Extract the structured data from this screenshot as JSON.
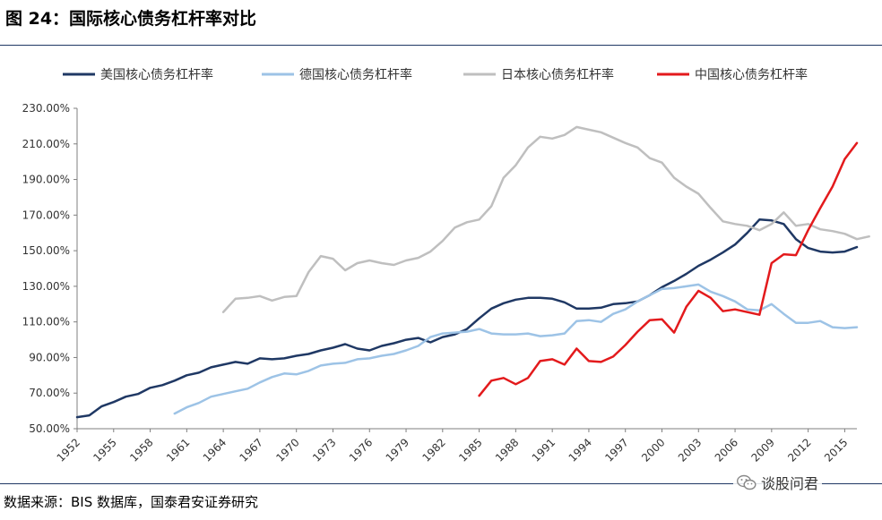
{
  "figure": {
    "title": "图 24：国际核心债务杠杆率对比",
    "source": "数据来源：BIS 数据库，国泰君安证券研究",
    "watermark": "谈股问君"
  },
  "chart_data": {
    "type": "line",
    "title": "",
    "xlabel": "",
    "ylabel": "",
    "ylim": [
      50,
      230
    ],
    "xlim": [
      1952,
      2016
    ],
    "y_ticks": [
      50,
      70,
      90,
      110,
      130,
      150,
      170,
      190,
      210,
      230
    ],
    "y_tick_labels": [
      "50.00%",
      "70.00%",
      "90.00%",
      "110.00%",
      "130.00%",
      "150.00%",
      "170.00%",
      "190.00%",
      "210.00%",
      "230.00%"
    ],
    "x_ticks": [
      1952,
      1955,
      1958,
      1961,
      1964,
      1967,
      1970,
      1973,
      1976,
      1979,
      1982,
      1985,
      1988,
      1991,
      1994,
      1997,
      2000,
      2003,
      2006,
      2009,
      2012,
      2015
    ],
    "x_tick_labels": [
      "1952",
      "1955",
      "1958",
      "1961",
      "1964",
      "1967",
      "1970",
      "1973",
      "1976",
      "1979",
      "1982",
      "1985",
      "1988",
      "1991",
      "1994",
      "1997",
      "2000",
      "2003",
      "2006",
      "2009",
      "2012",
      "2015"
    ],
    "grid": false,
    "legend_position": "top",
    "series": [
      {
        "name": "美国核心债务杠杆率",
        "color": "#1f3864",
        "points": [
          [
            1952,
            56.5
          ],
          [
            1953,
            57.5
          ],
          [
            1954,
            62.5
          ],
          [
            1955,
            65
          ],
          [
            1956,
            68
          ],
          [
            1957,
            69.5
          ],
          [
            1958,
            73
          ],
          [
            1959,
            74.5
          ],
          [
            1960,
            77
          ],
          [
            1961,
            80
          ],
          [
            1962,
            81.5
          ],
          [
            1963,
            84.5
          ],
          [
            1964,
            86
          ],
          [
            1965,
            87.5
          ],
          [
            1966,
            86.5
          ],
          [
            1967,
            89.5
          ],
          [
            1968,
            89
          ],
          [
            1969,
            89.5
          ],
          [
            1970,
            91
          ],
          [
            1971,
            92
          ],
          [
            1972,
            94
          ],
          [
            1973,
            95.5
          ],
          [
            1974,
            97.5
          ],
          [
            1975,
            95
          ],
          [
            1976,
            94
          ],
          [
            1977,
            96.5
          ],
          [
            1978,
            98
          ],
          [
            1979,
            100
          ],
          [
            1980,
            101
          ],
          [
            1981,
            98.5
          ],
          [
            1982,
            101.5
          ],
          [
            1983,
            103
          ],
          [
            1984,
            106
          ],
          [
            1985,
            112
          ],
          [
            1986,
            117.5
          ],
          [
            1987,
            120.5
          ],
          [
            1988,
            122.5
          ],
          [
            1989,
            123.5
          ],
          [
            1990,
            123.5
          ],
          [
            1991,
            123
          ],
          [
            1992,
            121
          ],
          [
            1993,
            117.5
          ],
          [
            1994,
            117.5
          ],
          [
            1995,
            118
          ],
          [
            1996,
            120
          ],
          [
            1997,
            120.5
          ],
          [
            1998,
            121.5
          ],
          [
            1999,
            125
          ],
          [
            2000,
            129.5
          ],
          [
            2001,
            133
          ],
          [
            2002,
            137
          ],
          [
            2003,
            141.5
          ],
          [
            2004,
            145
          ],
          [
            2005,
            149
          ],
          [
            2006,
            153.5
          ],
          [
            2007,
            160
          ],
          [
            2008,
            167.5
          ],
          [
            2009,
            167
          ],
          [
            2010,
            165
          ],
          [
            2011,
            156.5
          ],
          [
            2012,
            151.5
          ],
          [
            2013,
            149.5
          ],
          [
            2014,
            149
          ],
          [
            2015,
            149.5
          ],
          [
            2016,
            152
          ]
        ]
      },
      {
        "name": "德国核心债务杠杆率",
        "color": "#9dc3e6",
        "points": [
          [
            1960,
            58.5
          ],
          [
            1961,
            62
          ],
          [
            1962,
            64.5
          ],
          [
            1963,
            68
          ],
          [
            1964,
            69.5
          ],
          [
            1965,
            71
          ],
          [
            1966,
            72.5
          ],
          [
            1967,
            76
          ],
          [
            1968,
            79
          ],
          [
            1969,
            81
          ],
          [
            1970,
            80.5
          ],
          [
            1971,
            82.5
          ],
          [
            1972,
            85.5
          ],
          [
            1973,
            86.5
          ],
          [
            1974,
            87
          ],
          [
            1975,
            89
          ],
          [
            1976,
            89.5
          ],
          [
            1977,
            91
          ],
          [
            1978,
            92
          ],
          [
            1979,
            94
          ],
          [
            1980,
            96.5
          ],
          [
            1981,
            101.5
          ],
          [
            1982,
            103.5
          ],
          [
            1983,
            104
          ],
          [
            1984,
            104.5
          ],
          [
            1985,
            106
          ],
          [
            1986,
            103.5
          ],
          [
            1987,
            103
          ],
          [
            1988,
            103
          ],
          [
            1989,
            103.5
          ],
          [
            1990,
            102
          ],
          [
            1991,
            102.5
          ],
          [
            1992,
            103.5
          ],
          [
            1993,
            110.5
          ],
          [
            1994,
            111
          ],
          [
            1995,
            110
          ],
          [
            1996,
            114.5
          ],
          [
            1997,
            117
          ],
          [
            1998,
            121.5
          ],
          [
            1999,
            125
          ],
          [
            2000,
            128.5
          ],
          [
            2001,
            129
          ],
          [
            2002,
            130
          ],
          [
            2003,
            131
          ],
          [
            2004,
            127
          ],
          [
            2005,
            124.5
          ],
          [
            2006,
            121.5
          ],
          [
            2007,
            117
          ],
          [
            2008,
            116.5
          ],
          [
            2009,
            120
          ],
          [
            2010,
            114.5
          ],
          [
            2011,
            109.5
          ],
          [
            2012,
            109.5
          ],
          [
            2013,
            110.5
          ],
          [
            2014,
            107
          ],
          [
            2015,
            106.5
          ],
          [
            2016,
            107
          ]
        ]
      },
      {
        "name": "日本核心债务杠杆率",
        "color": "#bfbfbf",
        "points": [
          [
            1964,
            115.5
          ],
          [
            1965,
            123
          ],
          [
            1966,
            123.5
          ],
          [
            1967,
            124.5
          ],
          [
            1968,
            122
          ],
          [
            1969,
            124
          ],
          [
            1970,
            124.5
          ],
          [
            1971,
            138
          ],
          [
            1972,
            147
          ],
          [
            1973,
            145.5
          ],
          [
            1974,
            139
          ],
          [
            1975,
            143
          ],
          [
            1976,
            144.5
          ],
          [
            1977,
            143
          ],
          [
            1978,
            142
          ],
          [
            1979,
            144.5
          ],
          [
            1980,
            146
          ],
          [
            1981,
            149.5
          ],
          [
            1982,
            155.5
          ],
          [
            1983,
            163
          ],
          [
            1984,
            166
          ],
          [
            1985,
            167.5
          ],
          [
            1986,
            175
          ],
          [
            1987,
            191
          ],
          [
            1988,
            198
          ],
          [
            1989,
            208
          ],
          [
            1990,
            214
          ],
          [
            1991,
            213
          ],
          [
            1992,
            215
          ],
          [
            1993,
            219.5
          ],
          [
            1994,
            218
          ],
          [
            1995,
            216.5
          ],
          [
            1996,
            213.5
          ],
          [
            1997,
            210.5
          ],
          [
            1998,
            208
          ],
          [
            1999,
            202
          ],
          [
            2000,
            199.5
          ],
          [
            2001,
            191
          ],
          [
            2002,
            186
          ],
          [
            2003,
            182
          ],
          [
            2004,
            174
          ],
          [
            2005,
            166.5
          ],
          [
            2006,
            165
          ],
          [
            2007,
            164
          ],
          [
            2008,
            161.5
          ],
          [
            2009,
            165
          ],
          [
            2010,
            171.5
          ],
          [
            2011,
            164
          ],
          [
            2012,
            165
          ],
          [
            2013,
            162
          ],
          [
            2014,
            161
          ],
          [
            2015,
            159.5
          ],
          [
            2016,
            156.5
          ],
          [
            2017,
            158
          ]
        ]
      },
      {
        "name": "中国核心债务杠杆率",
        "color": "#e31a1c",
        "points": [
          [
            1985,
            68.5
          ],
          [
            1986,
            77
          ],
          [
            1987,
            78.5
          ],
          [
            1988,
            75
          ],
          [
            1989,
            78.5
          ],
          [
            1990,
            88
          ],
          [
            1991,
            89
          ],
          [
            1992,
            86
          ],
          [
            1993,
            95
          ],
          [
            1994,
            88
          ],
          [
            1995,
            87.5
          ],
          [
            1996,
            90.5
          ],
          [
            1997,
            97
          ],
          [
            1998,
            104.5
          ],
          [
            1999,
            111
          ],
          [
            2000,
            111.5
          ],
          [
            2001,
            104
          ],
          [
            2002,
            118.5
          ],
          [
            2003,
            127.5
          ],
          [
            2004,
            123.5
          ],
          [
            2005,
            116
          ],
          [
            2006,
            117
          ],
          [
            2007,
            115.5
          ],
          [
            2008,
            114
          ],
          [
            2009,
            143
          ],
          [
            2010,
            148
          ],
          [
            2011,
            147.5
          ],
          [
            2012,
            161.5
          ],
          [
            2013,
            174
          ],
          [
            2014,
            186
          ],
          [
            2015,
            201.5
          ],
          [
            2016,
            210.5
          ]
        ]
      }
    ]
  }
}
